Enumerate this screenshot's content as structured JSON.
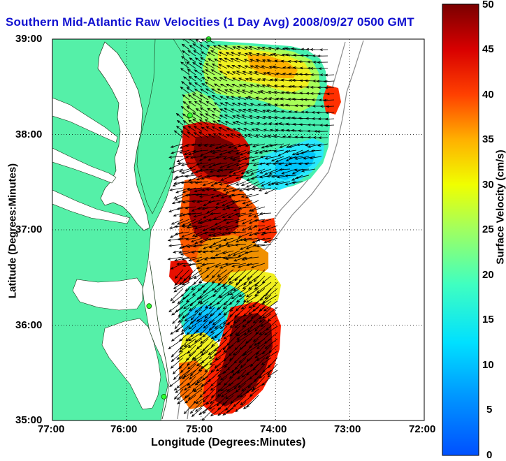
{
  "title": "Southern Mid-Atlantic Raw Velocities (1 Day Avg) 2008/09/27 0500 GMT",
  "map": {
    "xlabel": "Longitude (Degrees:Minutes)",
    "ylabel": "Latitude (Degrees:Minutes)",
    "x_ticks": [
      "77:00",
      "76:00",
      "75:00",
      "74:00",
      "73:00",
      "72:00"
    ],
    "y_ticks": [
      "39:00",
      "38:00",
      "37:00",
      "36:00",
      "35:00"
    ],
    "lon_range": [
      -77,
      -72
    ],
    "lat_range": [
      35,
      39
    ],
    "land_color": "#55f0a8",
    "grid": "dotted"
  },
  "colorbar": {
    "label": "Surface Velocity (cm/s)",
    "ticks": [
      "50",
      "45",
      "40",
      "35",
      "30",
      "25",
      "20",
      "15",
      "10",
      "5",
      "0"
    ],
    "range": [
      0,
      50
    ],
    "colormap": "jet"
  },
  "stations": [
    {
      "lon": -74.9,
      "lat": 39.0
    },
    {
      "lon": -75.15,
      "lat": 38.2
    },
    {
      "lon": -75.7,
      "lat": 36.2
    },
    {
      "lon": -75.5,
      "lat": 35.25
    }
  ]
}
